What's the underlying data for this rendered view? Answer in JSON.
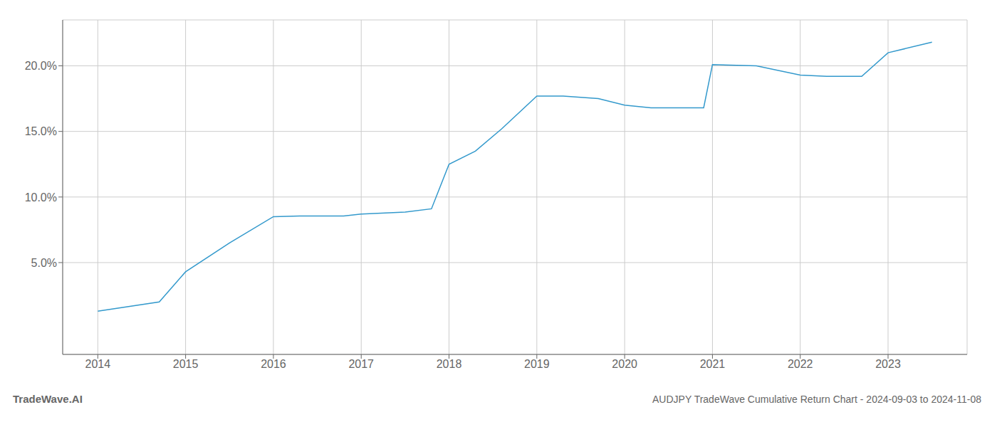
{
  "chart_data": {
    "type": "line",
    "title": "AUDJPY TradeWave Cumulative Return Chart - 2024-09-03 to 2024-11-08",
    "annotations": [
      "TradeWave.AI"
    ],
    "x": [
      2014.0,
      2014.7,
      2015.0,
      2015.5,
      2016.0,
      2016.3,
      2016.8,
      2017.0,
      2017.5,
      2017.8,
      2018.0,
      2018.3,
      2018.6,
      2019.0,
      2019.3,
      2019.7,
      2020.0,
      2020.3,
      2020.6,
      2020.9,
      2021.0,
      2021.5,
      2022.0,
      2022.3,
      2022.7,
      2023.0,
      2023.5
    ],
    "values": [
      1.3,
      2.0,
      4.3,
      6.5,
      8.5,
      8.55,
      8.55,
      8.7,
      8.85,
      9.1,
      12.5,
      13.5,
      15.2,
      17.7,
      17.7,
      17.5,
      17.0,
      16.8,
      16.8,
      16.8,
      20.1,
      20.0,
      19.3,
      19.2,
      19.2,
      21.0,
      21.8
    ],
    "color": "#3399cc",
    "xlim": [
      2013.6,
      2023.9
    ],
    "ylim": [
      -2.0,
      23.5
    ],
    "xticks": [
      2014,
      2015,
      2016,
      2017,
      2018,
      2019,
      2020,
      2021,
      2022,
      2023
    ],
    "yticks": [
      {
        "value": 5.0,
        "label": "5.0%"
      },
      {
        "value": 10.0,
        "label": "10.0%"
      },
      {
        "value": 15.0,
        "label": "15.0%"
      },
      {
        "value": 20.0,
        "label": "20.0%"
      }
    ],
    "grid": true
  }
}
